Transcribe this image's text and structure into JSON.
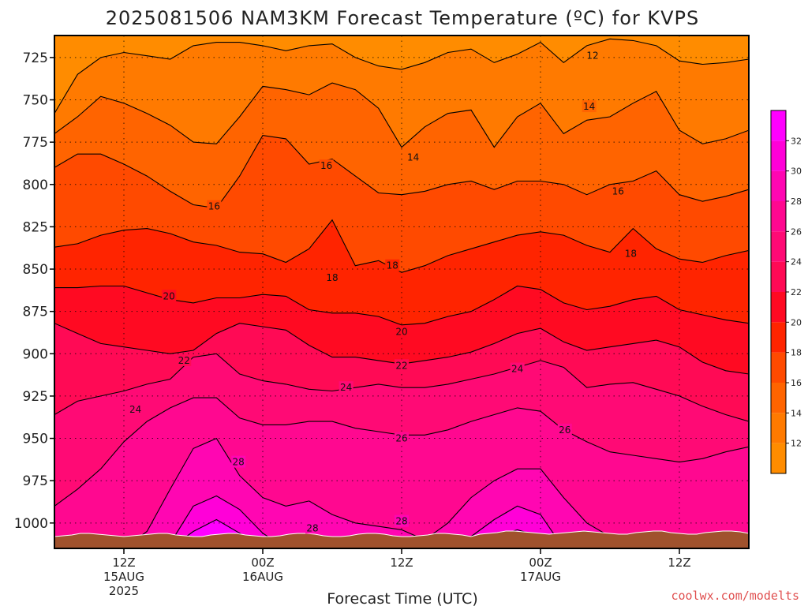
{
  "chart_data": {
    "type": "area",
    "title": "2025081506 NAM3KM Forecast Temperature (ºC) for KVPS",
    "xlabel": "Forecast Time (UTC)",
    "ylabel": "",
    "y_axis": {
      "quantity": "pressure (hPa)",
      "reversed": true,
      "range": [
        712,
        1015
      ],
      "ticks": [
        725,
        750,
        775,
        800,
        825,
        850,
        875,
        900,
        925,
        950,
        975,
        1000
      ]
    },
    "x_axis": {
      "range_hours": [
        0,
        60
      ],
      "ticks": [
        {
          "hour": 6,
          "lines": [
            "12Z",
            "15AUG",
            "2025"
          ]
        },
        {
          "hour": 18,
          "lines": [
            "00Z",
            "16AUG"
          ]
        },
        {
          "hour": 30,
          "lines": [
            "12Z"
          ]
        },
        {
          "hour": 42,
          "lines": [
            "00Z",
            "17AUG"
          ]
        },
        {
          "hour": 54,
          "lines": [
            "12Z"
          ]
        }
      ]
    },
    "grid": true,
    "x": [
      0,
      2,
      4,
      6,
      8,
      10,
      12,
      14,
      16,
      18,
      20,
      22,
      24,
      26,
      28,
      30,
      32,
      34,
      36,
      38,
      40,
      42,
      44,
      46,
      48,
      50,
      52,
      54,
      56,
      58,
      60
    ],
    "isotherms": [
      {
        "temp": 12,
        "pressure": [
          758,
          735,
          725,
          722,
          724,
          726,
          718,
          716,
          716,
          718,
          721,
          718,
          717,
          725,
          730,
          732,
          728,
          722,
          720,
          728,
          723,
          716,
          728,
          718,
          714,
          715,
          718,
          727,
          729,
          728,
          726
        ]
      },
      {
        "temp": 14,
        "pressure": [
          770,
          760,
          748,
          752,
          758,
          765,
          775,
          776,
          760,
          742,
          744,
          747,
          740,
          744,
          755,
          778,
          766,
          758,
          756,
          778,
          760,
          752,
          770,
          762,
          760,
          752,
          745,
          768,
          776,
          773,
          768
        ]
      },
      {
        "temp": 16,
        "pressure": [
          790,
          782,
          782,
          788,
          795,
          804,
          812,
          814,
          795,
          771,
          773,
          788,
          785,
          795,
          805,
          806,
          804,
          800,
          798,
          803,
          798,
          798,
          800,
          806,
          800,
          798,
          792,
          806,
          810,
          807,
          803
        ]
      },
      {
        "temp": 18,
        "pressure": [
          837,
          835,
          830,
          827,
          826,
          829,
          834,
          836,
          840,
          841,
          846,
          838,
          821,
          848,
          845,
          852,
          848,
          842,
          838,
          834,
          830,
          828,
          830,
          836,
          840,
          826,
          838,
          844,
          846,
          842,
          839
        ]
      },
      {
        "temp": 20,
        "pressure": [
          861,
          861,
          860,
          860,
          864,
          868,
          870,
          867,
          867,
          865,
          866,
          874,
          876,
          876,
          878,
          883,
          882,
          878,
          875,
          868,
          860,
          862,
          870,
          874,
          872,
          868,
          866,
          874,
          877,
          880,
          882
        ]
      },
      {
        "temp": 22,
        "pressure": [
          882,
          888,
          894,
          896,
          898,
          900,
          898,
          888,
          882,
          884,
          886,
          895,
          902,
          902,
          904,
          906,
          904,
          902,
          899,
          894,
          888,
          885,
          893,
          898,
          896,
          894,
          892,
          896,
          905,
          910,
          912
        ]
      },
      {
        "temp": 24,
        "pressure": [
          936,
          928,
          925,
          922,
          918,
          915,
          902,
          900,
          912,
          916,
          918,
          921,
          922,
          920,
          918,
          920,
          920,
          918,
          915,
          912,
          908,
          904,
          908,
          920,
          918,
          917,
          921,
          925,
          931,
          936,
          940
        ]
      },
      {
        "temp": 26,
        "pressure": [
          990,
          980,
          968,
          952,
          940,
          932,
          926,
          926,
          938,
          942,
          942,
          940,
          940,
          944,
          946,
          948,
          948,
          945,
          940,
          936,
          932,
          934,
          945,
          952,
          958,
          960,
          962,
          964,
          962,
          958,
          955
        ]
      },
      {
        "temp": 28,
        "pressure": [
          1015,
          1015,
          1015,
          1015,
          1005,
          980,
          956,
          950,
          972,
          985,
          990,
          987,
          995,
          1000,
          1002,
          1004,
          1010,
          1000,
          985,
          975,
          968,
          968,
          985,
          1000,
          1008,
          1012,
          1014,
          1015,
          1013,
          1012,
          1010
        ]
      },
      {
        "temp": 30,
        "pressure": [
          1015,
          1015,
          1015,
          1015,
          1015,
          1012,
          990,
          984,
          992,
          1006,
          1015,
          1015,
          1015,
          1015,
          1015,
          1015,
          1015,
          1015,
          1008,
          998,
          990,
          995,
          1015,
          1015,
          1015,
          1015,
          1015,
          1015,
          1015,
          1015,
          1015
        ]
      },
      {
        "temp": 32,
        "pressure": [
          1015,
          1015,
          1015,
          1015,
          1015,
          1015,
          1005,
          998,
          1006,
          1015,
          1015,
          1015,
          1015,
          1015,
          1015,
          1015,
          1015,
          1015,
          1015,
          1008,
          1004,
          1008,
          1015,
          1015,
          1015,
          1015,
          1015,
          1015,
          1015,
          1015,
          1015
        ]
      }
    ],
    "contour_labels": [
      {
        "text": "12",
        "hour": 46.5,
        "pressure": 724
      },
      {
        "text": "14",
        "hour": 46.2,
        "pressure": 754
      },
      {
        "text": "14",
        "hour": 31.0,
        "pressure": 784
      },
      {
        "text": "16",
        "hour": 23.5,
        "pressure": 789
      },
      {
        "text": "16",
        "hour": 13.8,
        "pressure": 813
      },
      {
        "text": "16",
        "hour": 48.7,
        "pressure": 804
      },
      {
        "text": "18",
        "hour": 24.0,
        "pressure": 855
      },
      {
        "text": "18",
        "hour": 29.2,
        "pressure": 848
      },
      {
        "text": "18",
        "hour": 49.8,
        "pressure": 841
      },
      {
        "text": "20",
        "hour": 9.9,
        "pressure": 866
      },
      {
        "text": "20",
        "hour": 30.0,
        "pressure": 887
      },
      {
        "text": "22",
        "hour": 11.2,
        "pressure": 904
      },
      {
        "text": "22",
        "hour": 30.0,
        "pressure": 907
      },
      {
        "text": "24",
        "hour": 7.0,
        "pressure": 933
      },
      {
        "text": "24",
        "hour": 25.2,
        "pressure": 920
      },
      {
        "text": "24",
        "hour": 40.0,
        "pressure": 909
      },
      {
        "text": "26",
        "hour": 30.0,
        "pressure": 950
      },
      {
        "text": "26",
        "hour": 44.1,
        "pressure": 945
      },
      {
        "text": "28",
        "hour": 15.9,
        "pressure": 964
      },
      {
        "text": "28",
        "hour": 22.3,
        "pressure": 1003
      },
      {
        "text": "28",
        "hour": 30.0,
        "pressure": 999
      }
    ],
    "ground": {
      "color": "#a0522d"
    },
    "colorbar": {
      "ticks": [
        12,
        14,
        16,
        18,
        20,
        22,
        24,
        26,
        28,
        30,
        32
      ],
      "bands": [
        {
          "from": 10,
          "to": 12,
          "color": "#ff8c00"
        },
        {
          "from": 12,
          "to": 14,
          "color": "#ff7a00"
        },
        {
          "from": 14,
          "to": 16,
          "color": "#ff6400"
        },
        {
          "from": 16,
          "to": 18,
          "color": "#ff4a00"
        },
        {
          "from": 18,
          "to": 20,
          "color": "#ff2400"
        },
        {
          "from": 20,
          "to": 22,
          "color": "#ff0a22"
        },
        {
          "from": 22,
          "to": 24,
          "color": "#ff0a55"
        },
        {
          "from": 24,
          "to": 26,
          "color": "#ff0a75"
        },
        {
          "from": 26,
          "to": 28,
          "color": "#ff0890"
        },
        {
          "from": 28,
          "to": 30,
          "color": "#ff06b2"
        },
        {
          "from": 30,
          "to": 32,
          "color": "#ff00d8"
        },
        {
          "from": 32,
          "to": 34,
          "color": "#ff00ff"
        }
      ]
    }
  },
  "credit": "coolwx.com/modelts"
}
